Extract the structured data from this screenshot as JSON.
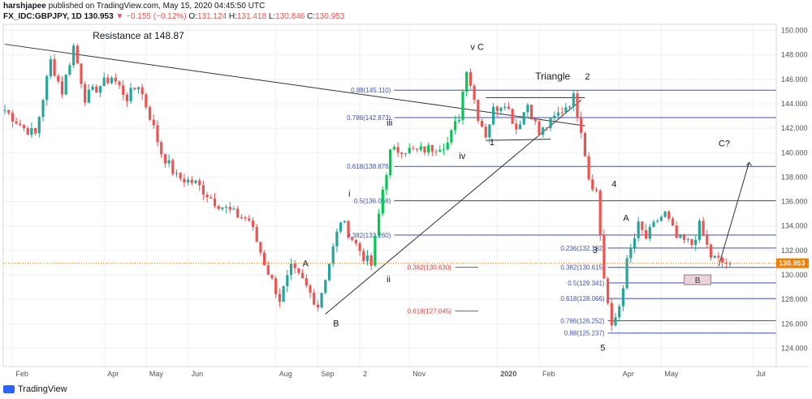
{
  "header": {
    "publisher": "harshjapee",
    "published_on": "published on TradingView.com, May 15, 2020 04:45:50 UTC",
    "symbol": "FX_IDC:GBPJPY, 1D",
    "last": "130.953",
    "change": "−0.155 (−0.12%)",
    "o_label": "O:",
    "o": "131.124",
    "h_label": "H:",
    "h": "131.418",
    "l_label": "L:",
    "l": "130.846",
    "c_label": "C:",
    "c": "130.953"
  },
  "footer": {
    "brand": "TradingView"
  },
  "colors": {
    "up": "#26a69a",
    "up_bright": "#00c853",
    "down": "#ef5350",
    "fib_blue": "#3f51b5",
    "fib_red": "#e53935",
    "last_price": "#f57c00",
    "grid": "#eef0f3"
  },
  "chart_data": {
    "type": "candlestick",
    "symbol": "GBPJPY",
    "timeframe": "1D",
    "ylim": [
      122.5,
      150.5
    ],
    "y_ticks": [
      "150.000",
      "148.000",
      "146.000",
      "144.000",
      "142.000",
      "140.000",
      "138.000",
      "136.000",
      "134.000",
      "132.000",
      "130.000",
      "128.000",
      "126.000",
      "124.000"
    ],
    "y_tick_values": [
      150,
      148,
      146,
      144,
      142,
      140,
      138,
      136,
      134,
      132,
      130,
      128,
      126,
      124
    ],
    "x_ticks": [
      "Feb",
      "Apr",
      "May",
      "Jun",
      "Aug",
      "Sep",
      "2",
      "Nov",
      "2020",
      "Feb",
      "Apr",
      "May",
      "Jul"
    ],
    "x_tick_index": [
      2,
      26,
      37,
      48,
      71,
      82,
      93,
      106,
      129,
      140,
      161,
      172,
      196
    ],
    "last_price": 130.953,
    "last_price_label": "130.953",
    "price_path": [
      [
        0,
        143.5
      ],
      [
        5,
        142
      ],
      [
        8,
        141.5
      ],
      [
        12,
        147.5
      ],
      [
        15,
        145
      ],
      [
        18,
        148.7
      ],
      [
        21,
        144.5
      ],
      [
        25,
        145.5
      ],
      [
        28,
        146.2
      ],
      [
        32,
        144.5
      ],
      [
        35,
        145.6
      ],
      [
        38,
        143
      ],
      [
        41,
        140
      ],
      [
        45,
        138
      ],
      [
        50,
        137.5
      ],
      [
        55,
        136
      ],
      [
        60,
        135
      ],
      [
        64,
        134.5
      ],
      [
        68,
        131
      ],
      [
        72,
        128
      ],
      [
        75,
        130.5
      ],
      [
        78,
        129.5
      ],
      [
        82,
        127.5
      ],
      [
        85,
        131
      ],
      [
        88,
        134.5
      ],
      [
        91,
        133
      ],
      [
        94,
        131.5
      ],
      [
        96,
        130.8
      ],
      [
        99,
        137
      ],
      [
        101,
        140
      ],
      [
        104,
        140.3
      ],
      [
        108,
        140.1
      ],
      [
        112,
        140.4
      ],
      [
        116,
        140.8
      ],
      [
        119,
        143
      ],
      [
        121,
        147
      ],
      [
        124,
        143
      ],
      [
        126,
        141.5
      ],
      [
        128,
        143.5
      ],
      [
        131,
        144.2
      ],
      [
        134,
        142
      ],
      [
        137,
        144
      ],
      [
        140,
        141.5
      ],
      [
        143,
        142.5
      ],
      [
        146,
        143.5
      ],
      [
        149,
        144.5
      ],
      [
        151,
        142
      ],
      [
        153,
        138
      ],
      [
        155,
        136.8
      ],
      [
        157,
        129.8
      ],
      [
        159,
        125.5
      ],
      [
        161,
        127.5
      ],
      [
        163,
        131
      ],
      [
        166,
        134
      ],
      [
        168,
        133
      ],
      [
        171,
        134.5
      ],
      [
        173,
        135
      ],
      [
        176,
        133
      ],
      [
        180,
        132.5
      ],
      [
        182,
        134
      ],
      [
        185,
        131.5
      ],
      [
        188,
        131
      ],
      [
        190,
        130.95
      ]
    ],
    "series": [
      {
        "name": "Resistance at 148.87",
        "type": "trendline",
        "from": [
          0,
          148.87
        ],
        "to": [
          152,
          142.2
        ]
      },
      {
        "name": "",
        "type": "trendline",
        "from": [
          84,
          126.8
        ],
        "to": [
          151,
          144.3
        ]
      },
      {
        "name": "C?",
        "type": "projection",
        "from": [
          187,
          130.7
        ],
        "to": [
          195,
          139.2
        ]
      }
    ],
    "fib_levels_blue": [
      {
        "label": "0.88(145.110)",
        "value": 145.11,
        "from": 102,
        "to": 220
      },
      {
        "label": "0.786(142.873)",
        "value": 142.873,
        "from": 102,
        "to": 220
      },
      {
        "label": "0.618(138.876)",
        "value": 138.876,
        "from": 102,
        "to": 220
      },
      {
        "label": "0.5(136.068)",
        "value": 136.068,
        "from": 102,
        "to": 220
      },
      {
        "label": "0.382(133.260)",
        "value": 133.26,
        "from": 102,
        "to": 220
      },
      {
        "label": "0.236(132.192)",
        "value": 132.192,
        "from": 158,
        "to": 220
      },
      {
        "label": "0.382(130.615)",
        "value": 130.615,
        "from": 158,
        "to": 220
      },
      {
        "label": "0.5(129.341)",
        "value": 129.341,
        "from": 158,
        "to": 220
      },
      {
        "label": "0.618(128.066)",
        "value": 128.066,
        "from": 158,
        "to": 220
      },
      {
        "label": "0.786(126.252)",
        "value": 126.252,
        "from": 158,
        "to": 220
      },
      {
        "label": "0.88(125.237)",
        "value": 125.237,
        "from": 158,
        "to": 220
      }
    ],
    "fib_levels_red": [
      {
        "label": "0.382(130.630)",
        "value": 130.63
      },
      {
        "label": "0.618(127.045)",
        "value": 127.045
      }
    ],
    "wave_labels": [
      {
        "text": "Resistance at 148.87",
        "x": 23,
        "y": 149.3
      },
      {
        "text": "v C",
        "x": 122,
        "y": 148.4
      },
      {
        "text": "Triangle",
        "x": 139,
        "y": 146
      },
      {
        "text": "2",
        "x": 152,
        "y": 146
      },
      {
        "text": "iii",
        "x": 100,
        "y": 142.2
      },
      {
        "text": "1",
        "x": 127,
        "y": 140.6
      },
      {
        "text": "iv",
        "x": 119,
        "y": 139.5
      },
      {
        "text": "4",
        "x": 159,
        "y": 137.2
      },
      {
        "text": "i",
        "x": 90,
        "y": 136.4
      },
      {
        "text": "A",
        "x": 162,
        "y": 134.4
      },
      {
        "text": "3",
        "x": 154,
        "y": 131.8
      },
      {
        "text": "A",
        "x": 78,
        "y": 130.7
      },
      {
        "text": "ii",
        "x": 100,
        "y": 129.4
      },
      {
        "text": "B",
        "x": 86,
        "y": 125.8
      },
      {
        "text": "5",
        "x": 156,
        "y": 123.8
      },
      {
        "text": "C?",
        "x": 187,
        "y": 140.5
      }
    ],
    "box_B": {
      "text": "B",
      "x_from": 178,
      "x_to": 185,
      "y_from": 129.2,
      "y_to": 130.0
    }
  }
}
